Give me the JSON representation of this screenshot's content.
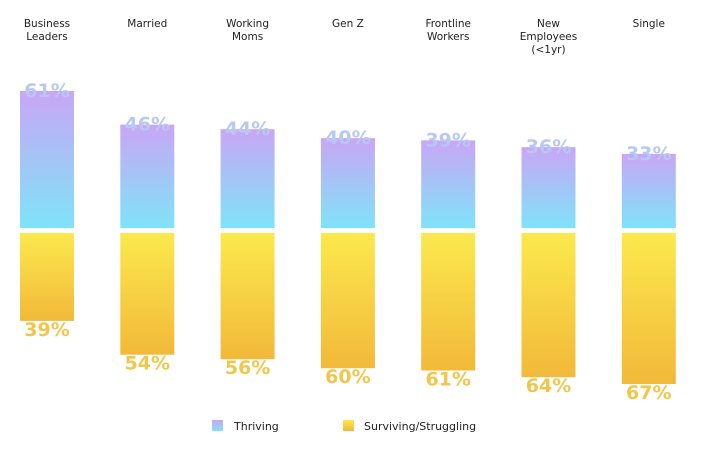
{
  "chart_data": {
    "type": "bar",
    "categories": [
      [
        "Business",
        "Leaders"
      ],
      [
        "Married"
      ],
      [
        "Working",
        "Moms"
      ],
      [
        "Gen Z"
      ],
      [
        "Frontline",
        "Workers"
      ],
      [
        "New",
        "Employees",
        "(<1yr)"
      ],
      [
        "Single"
      ]
    ],
    "series": [
      {
        "name": "Thriving",
        "values": [
          61,
          46,
          44,
          40,
          39,
          36,
          33
        ],
        "value_labels": [
          "61%",
          "46%",
          "44%",
          "40%",
          "39%",
          "36%",
          "33%"
        ]
      },
      {
        "name": "Surviving/Struggling",
        "values": [
          39,
          54,
          56,
          60,
          61,
          64,
          67
        ],
        "value_labels": [
          "39%",
          "54%",
          "56%",
          "60%",
          "61%",
          "64%",
          "67%"
        ]
      }
    ],
    "title": "",
    "xlabel": "",
    "ylabel": "",
    "legend_placement": "bottom",
    "colors": {
      "thriving_top": "#c9a6f5",
      "thriving_bottom": "#7fe3f8",
      "thriving_label": "#b8c8f4",
      "surviving_top": "#fbe94d",
      "surviving_bottom": "#f2b93a",
      "surviving_label": "#f1c64a"
    }
  }
}
